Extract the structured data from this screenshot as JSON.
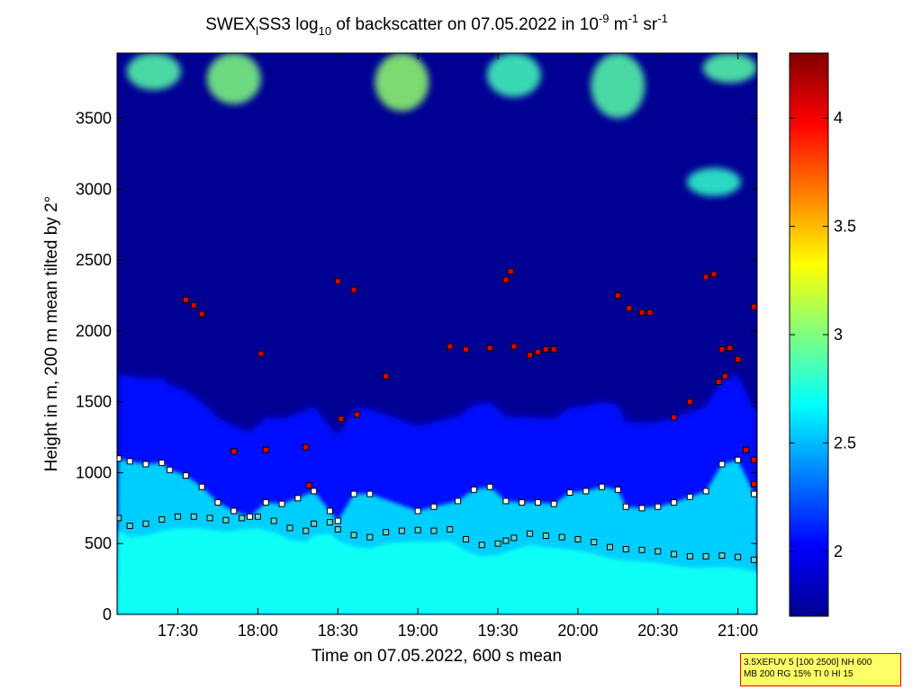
{
  "chart_data": {
    "type": "heatmap",
    "title": {
      "prefix": "SWEX",
      "prefix_sub": "l",
      "name": "SS3 log",
      "log_base": "10",
      "middle": " of backscatter on 07.05.2022 in 10",
      "exp1": "-9",
      "unit1": " m",
      "exp2": "-1",
      "unit2": " sr",
      "exp3": "-1"
    },
    "xlabel": "Time on 07.05.2022, 600 s mean",
    "ylabel": "Height in m, 200 m mean tilted by 2°",
    "x_ticks": [
      "17:30",
      "18:00",
      "18:30",
      "19:00",
      "19:30",
      "20:00",
      "20:30",
      "21:00"
    ],
    "x_tick_values": [
      17.5,
      18.0,
      18.5,
      19.0,
      19.5,
      20.0,
      20.5,
      21.0
    ],
    "xlim": [
      17.12,
      21.12
    ],
    "y_ticks": [
      "0",
      "500",
      "1000",
      "1500",
      "2000",
      "2500",
      "3000",
      "3500"
    ],
    "y_tick_values": [
      0,
      500,
      1000,
      1500,
      2000,
      2500,
      3000,
      3500
    ],
    "ylim": [
      0,
      3960
    ],
    "colorbar": {
      "range": [
        1.7,
        4.3
      ],
      "ticks": [
        "2",
        "2.5",
        "3",
        "3.5",
        "4"
      ],
      "tick_values": [
        2,
        2.5,
        3,
        3.5,
        4
      ],
      "colormap": "jet"
    },
    "background_levels": {
      "free_troposphere": 1.75,
      "aerosol_layer_top": 2.05,
      "mixed_layer": 2.55,
      "surface_layer": 2.7
    },
    "cloud_layers_top": [
      {
        "t": 17.35,
        "h_from": 3700,
        "h_to": 3960,
        "value": 2.9
      },
      {
        "t": 17.85,
        "h_from": 3600,
        "h_to": 3960,
        "value": 3.0
      },
      {
        "t": 18.9,
        "h_from": 3550,
        "h_to": 3960,
        "value": 3.05
      },
      {
        "t": 19.6,
        "h_from": 3650,
        "h_to": 3960,
        "value": 2.85
      },
      {
        "t": 20.25,
        "h_from": 3500,
        "h_to": 3960,
        "value": 2.9
      },
      {
        "t": 20.85,
        "h_from": 2950,
        "h_to": 3150,
        "value": 2.8
      },
      {
        "t": 20.95,
        "h_from": 3750,
        "h_to": 3960,
        "value": 2.9
      }
    ],
    "series": [
      {
        "marker": "mixed-layer-height",
        "points": [
          [
            17.13,
            680
          ],
          [
            17.2,
            625
          ],
          [
            17.3,
            640
          ],
          [
            17.4,
            670
          ],
          [
            17.5,
            690
          ],
          [
            17.6,
            690
          ],
          [
            17.7,
            680
          ],
          [
            17.8,
            665
          ],
          [
            17.9,
            680
          ],
          [
            18.0,
            690
          ],
          [
            18.1,
            660
          ],
          [
            18.2,
            610
          ],
          [
            18.3,
            590
          ],
          [
            18.35,
            640
          ],
          [
            18.45,
            650
          ],
          [
            18.5,
            600
          ],
          [
            18.6,
            560
          ],
          [
            18.7,
            545
          ],
          [
            18.8,
            580
          ],
          [
            18.9,
            590
          ],
          [
            19.0,
            595
          ],
          [
            19.1,
            590
          ],
          [
            19.2,
            600
          ],
          [
            19.3,
            530
          ],
          [
            19.4,
            490
          ],
          [
            19.5,
            500
          ],
          [
            19.55,
            520
          ],
          [
            19.6,
            540
          ],
          [
            19.7,
            570
          ],
          [
            19.8,
            555
          ],
          [
            19.9,
            545
          ],
          [
            20.0,
            530
          ],
          [
            20.1,
            510
          ],
          [
            20.2,
            475
          ],
          [
            20.3,
            460
          ],
          [
            20.4,
            455
          ],
          [
            20.5,
            445
          ],
          [
            20.6,
            425
          ],
          [
            20.7,
            410
          ],
          [
            20.8,
            410
          ],
          [
            20.9,
            415
          ],
          [
            21.0,
            405
          ],
          [
            21.1,
            385
          ]
        ]
      },
      {
        "marker": "aerosol-layer-height",
        "points": [
          [
            17.13,
            1100
          ],
          [
            17.2,
            1080
          ],
          [
            17.3,
            1060
          ],
          [
            17.4,
            1070
          ],
          [
            17.45,
            1020
          ],
          [
            17.55,
            980
          ],
          [
            17.65,
            900
          ],
          [
            17.75,
            790
          ],
          [
            17.85,
            730
          ],
          [
            17.95,
            690
          ],
          [
            18.05,
            790
          ],
          [
            18.15,
            780
          ],
          [
            18.25,
            820
          ],
          [
            18.35,
            870
          ],
          [
            18.45,
            730
          ],
          [
            18.5,
            660
          ],
          [
            18.6,
            850
          ],
          [
            18.7,
            850
          ],
          [
            19.0,
            730
          ],
          [
            19.1,
            760
          ],
          [
            19.25,
            800
          ],
          [
            19.35,
            880
          ],
          [
            19.45,
            900
          ],
          [
            19.55,
            800
          ],
          [
            19.65,
            790
          ],
          [
            19.75,
            790
          ],
          [
            19.85,
            780
          ],
          [
            19.95,
            860
          ],
          [
            20.05,
            870
          ],
          [
            20.15,
            900
          ],
          [
            20.25,
            880
          ],
          [
            20.3,
            760
          ],
          [
            20.4,
            750
          ],
          [
            20.5,
            760
          ],
          [
            20.6,
            790
          ],
          [
            20.7,
            830
          ],
          [
            20.8,
            870
          ],
          [
            20.9,
            1060
          ],
          [
            21.0,
            1090
          ],
          [
            21.1,
            850
          ]
        ]
      },
      {
        "marker": "cloud-base-height",
        "points": [
          [
            17.55,
            2220
          ],
          [
            17.6,
            2180
          ],
          [
            17.65,
            2120
          ],
          [
            17.85,
            1150
          ],
          [
            18.02,
            1840
          ],
          [
            18.05,
            1160
          ],
          [
            18.3,
            1180
          ],
          [
            18.32,
            910
          ],
          [
            18.5,
            2350
          ],
          [
            18.52,
            1380
          ],
          [
            18.6,
            2290
          ],
          [
            18.62,
            1410
          ],
          [
            18.8,
            1680
          ],
          [
            19.2,
            1890
          ],
          [
            19.3,
            1870
          ],
          [
            19.45,
            1880
          ],
          [
            19.55,
            2360
          ],
          [
            19.58,
            2420
          ],
          [
            19.6,
            1890
          ],
          [
            19.7,
            1830
          ],
          [
            19.75,
            1850
          ],
          [
            19.8,
            1870
          ],
          [
            19.85,
            1870
          ],
          [
            20.25,
            2250
          ],
          [
            20.32,
            2160
          ],
          [
            20.4,
            2130
          ],
          [
            20.45,
            2130
          ],
          [
            20.6,
            1390
          ],
          [
            20.7,
            1500
          ],
          [
            20.8,
            2380
          ],
          [
            20.85,
            2400
          ],
          [
            20.9,
            1870
          ],
          [
            20.95,
            1880
          ],
          [
            20.88,
            1640
          ],
          [
            20.92,
            1680
          ],
          [
            21.05,
            1160
          ],
          [
            21.1,
            1090
          ],
          [
            21.1,
            2170
          ],
          [
            21.1,
            920
          ],
          [
            21.0,
            1800
          ]
        ]
      }
    ]
  },
  "info": {
    "line1": "3.5XEFUV 5 [100 2500] NH 600",
    "line2": "MB 200 RG 15% TI 0 HI 15"
  }
}
